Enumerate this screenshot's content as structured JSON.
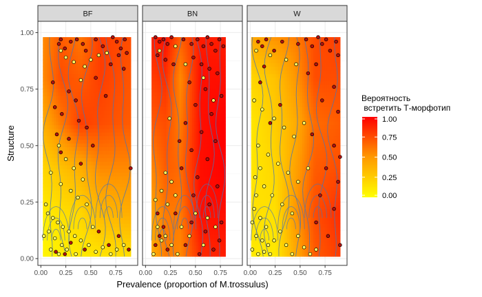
{
  "chart_data": {
    "type": "scatter",
    "subtype": "faceted scatter over probability heatmap with contour lines",
    "panels": [
      "BF",
      "BN",
      "W"
    ],
    "xlabel": "Prevalence (proportion of M.trossulus)",
    "ylabel": "Structure",
    "xlim": [
      -0.03,
      0.97
    ],
    "ylim": [
      -0.03,
      1.05
    ],
    "x_ticks": [
      0.0,
      0.25,
      0.5,
      0.75
    ],
    "x_tick_labels": [
      "0.00",
      "0.25",
      "0.50",
      "0.75"
    ],
    "y_ticks": [
      0.0,
      0.25,
      0.5,
      0.75,
      1.0
    ],
    "y_tick_labels": [
      "0.00",
      "0.25",
      "0.50",
      "0.75",
      "1.00"
    ],
    "grid": true,
    "legend": {
      "title": "Вероятность\n встретить Т-морфотип",
      "placement": "right",
      "range": [
        0,
        1
      ],
      "ticks": [
        1.0,
        0.75,
        0.5,
        0.25,
        0.0
      ],
      "tick_labels": [
        "1.00",
        "0.75",
        "0.50",
        "0.25",
        "0.00"
      ],
      "colors": [
        "#ffff00",
        "#ff0000"
      ]
    },
    "point_colors": {
      "T": "#b01010",
      "nonT": "#ffff66"
    },
    "contour_color": "#4a74b5",
    "heatmaps": [
      {
        "panel": "BF",
        "x_range": [
          0.02,
          0.9
        ],
        "y_range": [
          0.01,
          0.98
        ],
        "x_grid": [
          0.02,
          0.2,
          0.4,
          0.6,
          0.9
        ],
        "y_grid": [
          0.0,
          0.2,
          0.4,
          0.6,
          0.8,
          1.0
        ],
        "z": [
          [
            0.05,
            0.08,
            0.1,
            0.12,
            0.15
          ],
          [
            0.08,
            0.15,
            0.2,
            0.35,
            0.4
          ],
          [
            0.2,
            0.3,
            0.4,
            0.55,
            0.55
          ],
          [
            0.4,
            0.6,
            0.8,
            0.75,
            0.7
          ],
          [
            0.55,
            0.75,
            0.7,
            0.8,
            0.72
          ],
          [
            0.55,
            0.7,
            0.6,
            0.8,
            0.75
          ]
        ]
      },
      {
        "panel": "BN",
        "x_range": [
          0.06,
          0.8
        ],
        "y_range": [
          0.01,
          0.98
        ],
        "x_grid": [
          0.06,
          0.2,
          0.35,
          0.55,
          0.8
        ],
        "y_grid": [
          0.0,
          0.2,
          0.4,
          0.6,
          0.8,
          1.0
        ],
        "z": [
          [
            0.4,
            0.6,
            0.55,
            0.85,
            0.9
          ],
          [
            0.45,
            0.6,
            0.6,
            0.95,
            0.95
          ],
          [
            0.55,
            0.7,
            0.65,
            0.95,
            1.0
          ],
          [
            0.7,
            0.75,
            0.6,
            0.95,
            1.0
          ],
          [
            0.8,
            0.85,
            0.55,
            0.95,
            0.95
          ],
          [
            0.9,
            0.95,
            0.7,
            0.9,
            0.9
          ]
        ]
      },
      {
        "panel": "W",
        "x_range": [
          0.01,
          0.9
        ],
        "y_range": [
          0.01,
          0.98
        ],
        "x_grid": [
          0.01,
          0.25,
          0.45,
          0.65,
          0.9
        ],
        "y_grid": [
          0.0,
          0.2,
          0.4,
          0.6,
          0.8,
          1.0
        ],
        "z": [
          [
            0.1,
            0.1,
            0.4,
            0.7,
            0.8
          ],
          [
            0.15,
            0.15,
            0.5,
            0.75,
            0.85
          ],
          [
            0.12,
            0.2,
            0.45,
            0.7,
            0.75
          ],
          [
            0.12,
            0.25,
            0.4,
            0.65,
            0.7
          ],
          [
            0.2,
            0.3,
            0.5,
            0.75,
            0.75
          ],
          [
            0.45,
            0.55,
            0.6,
            0.75,
            0.8
          ]
        ]
      }
    ],
    "points": [
      {
        "panel": "BF",
        "T": [
          [
            0.2,
            0.97
          ],
          [
            0.18,
            0.95
          ],
          [
            0.24,
            0.93
          ],
          [
            0.3,
            0.96
          ],
          [
            0.36,
            0.97
          ],
          [
            0.42,
            0.95
          ],
          [
            0.45,
            0.92
          ],
          [
            0.55,
            0.97
          ],
          [
            0.62,
            0.94
          ],
          [
            0.72,
            0.98
          ],
          [
            0.76,
            0.96
          ],
          [
            0.8,
            0.93
          ],
          [
            0.84,
            0.97
          ],
          [
            0.78,
            0.9
          ],
          [
            0.86,
            0.91
          ],
          [
            0.7,
            0.86
          ],
          [
            0.83,
            0.84
          ],
          [
            0.12,
            0.78
          ],
          [
            0.28,
            0.74
          ],
          [
            0.35,
            0.7
          ],
          [
            0.14,
            0.67
          ],
          [
            0.21,
            0.64
          ],
          [
            0.38,
            0.61
          ],
          [
            0.46,
            0.58
          ],
          [
            0.16,
            0.55
          ],
          [
            0.28,
            0.53
          ],
          [
            0.52,
            0.5
          ],
          [
            0.2,
            0.47
          ],
          [
            0.4,
            0.42
          ],
          [
            0.55,
            0.8
          ],
          [
            0.65,
            0.72
          ],
          [
            0.9,
            0.4
          ],
          [
            0.68,
            0.06
          ],
          [
            0.88,
            0.04
          ],
          [
            0.58,
            0.12
          ],
          [
            0.15,
            0.03
          ],
          [
            0.3,
            0.07
          ],
          [
            0.24,
            0.02
          ],
          [
            0.44,
            0.04
          ],
          [
            0.78,
            0.1
          ]
        ],
        "nonT": [
          [
            0.2,
            0.92
          ],
          [
            0.25,
            0.89
          ],
          [
            0.33,
            0.87
          ],
          [
            0.44,
            0.85
          ],
          [
            0.5,
            0.88
          ],
          [
            0.58,
            0.9
          ],
          [
            0.66,
            0.91
          ],
          [
            0.4,
            0.79
          ],
          [
            0.18,
            0.5
          ],
          [
            0.25,
            0.44
          ],
          [
            0.33,
            0.4
          ],
          [
            0.1,
            0.38
          ],
          [
            0.42,
            0.35
          ],
          [
            0.2,
            0.33
          ],
          [
            0.3,
            0.3
          ],
          [
            0.37,
            0.27
          ],
          [
            0.46,
            0.24
          ],
          [
            0.05,
            0.24
          ],
          [
            0.07,
            0.2
          ],
          [
            0.12,
            0.18
          ],
          [
            0.17,
            0.16
          ],
          [
            0.22,
            0.14
          ],
          [
            0.28,
            0.12
          ],
          [
            0.34,
            0.1
          ],
          [
            0.4,
            0.08
          ],
          [
            0.14,
            0.09
          ],
          [
            0.21,
            0.06
          ],
          [
            0.1,
            0.04
          ],
          [
            0.18,
            0.02
          ],
          [
            0.26,
            0.04
          ],
          [
            0.35,
            0.02
          ],
          [
            0.48,
            0.06
          ],
          [
            0.55,
            0.03
          ],
          [
            0.62,
            0.05
          ],
          [
            0.7,
            0.02
          ],
          [
            0.76,
            0.04
          ],
          [
            0.83,
            0.06
          ],
          [
            0.03,
            0.1
          ],
          [
            0.08,
            0.12
          ],
          [
            0.52,
            0.14
          ]
        ]
      },
      {
        "panel": "BN",
        "T": [
          [
            0.1,
            0.98
          ],
          [
            0.14,
            0.96
          ],
          [
            0.18,
            0.97
          ],
          [
            0.22,
            0.95
          ],
          [
            0.26,
            0.98
          ],
          [
            0.38,
            0.97
          ],
          [
            0.46,
            0.95
          ],
          [
            0.52,
            0.97
          ],
          [
            0.58,
            0.94
          ],
          [
            0.62,
            0.98
          ],
          [
            0.66,
            0.95
          ],
          [
            0.7,
            0.92
          ],
          [
            0.74,
            0.97
          ],
          [
            0.78,
            0.94
          ],
          [
            0.12,
            0.9
          ],
          [
            0.2,
            0.88
          ],
          [
            0.28,
            0.86
          ],
          [
            0.48,
            0.89
          ],
          [
            0.56,
            0.86
          ],
          [
            0.64,
            0.84
          ],
          [
            0.72,
            0.82
          ],
          [
            0.44,
            0.78
          ],
          [
            0.6,
            0.75
          ],
          [
            0.76,
            0.72
          ],
          [
            0.5,
            0.68
          ],
          [
            0.66,
            0.64
          ],
          [
            0.4,
            0.6
          ],
          [
            0.56,
            0.56
          ],
          [
            0.7,
            0.52
          ],
          [
            0.46,
            0.48
          ],
          [
            0.62,
            0.44
          ],
          [
            0.36,
            0.4
          ],
          [
            0.52,
            0.36
          ],
          [
            0.72,
            0.32
          ],
          [
            0.48,
            0.28
          ],
          [
            0.64,
            0.24
          ],
          [
            0.3,
            0.2
          ],
          [
            0.46,
            0.16
          ],
          [
            0.6,
            0.12
          ],
          [
            0.74,
            0.08
          ],
          [
            0.1,
            0.06
          ],
          [
            0.14,
            0.1
          ],
          [
            0.18,
            0.14
          ],
          [
            0.12,
            0.2
          ],
          [
            0.22,
            0.04
          ],
          [
            0.4,
            0.06
          ],
          [
            0.54,
            0.02
          ],
          [
            0.68,
            0.04
          ],
          [
            0.76,
            0.16
          ],
          [
            0.34,
            0.52
          ]
        ],
        "nonT": [
          [
            0.14,
            0.92
          ],
          [
            0.3,
            0.94
          ],
          [
            0.4,
            0.86
          ],
          [
            0.58,
            0.8
          ],
          [
            0.68,
            0.7
          ],
          [
            0.24,
            0.62
          ],
          [
            0.2,
            0.38
          ],
          [
            0.26,
            0.34
          ],
          [
            0.16,
            0.3
          ],
          [
            0.1,
            0.26
          ],
          [
            0.22,
            0.24
          ],
          [
            0.3,
            0.28
          ],
          [
            0.12,
            0.14
          ],
          [
            0.16,
            0.08
          ],
          [
            0.08,
            0.02
          ],
          [
            0.2,
            0.1
          ],
          [
            0.26,
            0.06
          ],
          [
            0.32,
            0.02
          ],
          [
            0.44,
            0.1
          ],
          [
            0.5,
            0.2
          ],
          [
            0.36,
            0.14
          ],
          [
            0.58,
            0.06
          ],
          [
            0.62,
            0.18
          ],
          [
            0.7,
            0.14
          ]
        ]
      },
      {
        "panel": "W",
        "T": [
          [
            0.08,
            0.96
          ],
          [
            0.12,
            0.94
          ],
          [
            0.16,
            0.97
          ],
          [
            0.24,
            0.92
          ],
          [
            0.32,
            0.96
          ],
          [
            0.48,
            0.95
          ],
          [
            0.56,
            0.97
          ],
          [
            0.62,
            0.94
          ],
          [
            0.68,
            0.98
          ],
          [
            0.72,
            0.95
          ],
          [
            0.76,
            0.97
          ],
          [
            0.8,
            0.92
          ],
          [
            0.86,
            0.96
          ],
          [
            0.88,
            0.9
          ],
          [
            0.14,
            0.85
          ],
          [
            0.58,
            0.82
          ],
          [
            0.66,
            0.86
          ],
          [
            0.84,
            0.76
          ],
          [
            0.1,
            0.78
          ],
          [
            0.72,
            0.7
          ],
          [
            0.88,
            0.65
          ],
          [
            0.62,
            0.55
          ],
          [
            0.84,
            0.5
          ],
          [
            0.9,
            0.45
          ],
          [
            0.76,
            0.4
          ],
          [
            0.88,
            0.34
          ],
          [
            0.7,
            0.28
          ],
          [
            0.84,
            0.22
          ],
          [
            0.66,
            0.16
          ],
          [
            0.78,
            0.1
          ],
          [
            0.9,
            0.06
          ],
          [
            0.2,
            0.6
          ],
          [
            0.3,
            0.68
          ]
        ],
        "nonT": [
          [
            0.06,
            0.92
          ],
          [
            0.2,
            0.9
          ],
          [
            0.36,
            0.88
          ],
          [
            0.46,
            0.86
          ],
          [
            0.04,
            0.7
          ],
          [
            0.12,
            0.66
          ],
          [
            0.24,
            0.62
          ],
          [
            0.34,
            0.58
          ],
          [
            0.44,
            0.54
          ],
          [
            0.54,
            0.6
          ],
          [
            0.08,
            0.5
          ],
          [
            0.18,
            0.46
          ],
          [
            0.28,
            0.42
          ],
          [
            0.38,
            0.38
          ],
          [
            0.48,
            0.34
          ],
          [
            0.58,
            0.4
          ],
          [
            0.05,
            0.36
          ],
          [
            0.14,
            0.32
          ],
          [
            0.22,
            0.28
          ],
          [
            0.32,
            0.24
          ],
          [
            0.42,
            0.2
          ],
          [
            0.04,
            0.22
          ],
          [
            0.1,
            0.18
          ],
          [
            0.16,
            0.14
          ],
          [
            0.06,
            0.1
          ],
          [
            0.12,
            0.08
          ],
          [
            0.18,
            0.06
          ],
          [
            0.02,
            0.04
          ],
          [
            0.08,
            0.02
          ],
          [
            0.14,
            0.03
          ],
          [
            0.2,
            0.02
          ],
          [
            0.24,
            0.08
          ],
          [
            0.3,
            0.12
          ],
          [
            0.36,
            0.06
          ],
          [
            0.42,
            0.02
          ],
          [
            0.48,
            0.1
          ],
          [
            0.54,
            0.05
          ],
          [
            0.6,
            0.02
          ],
          [
            0.66,
            0.04
          ],
          [
            0.02,
            0.16
          ],
          [
            0.06,
            0.28
          ],
          [
            0.1,
            0.4
          ]
        ]
      }
    ]
  }
}
